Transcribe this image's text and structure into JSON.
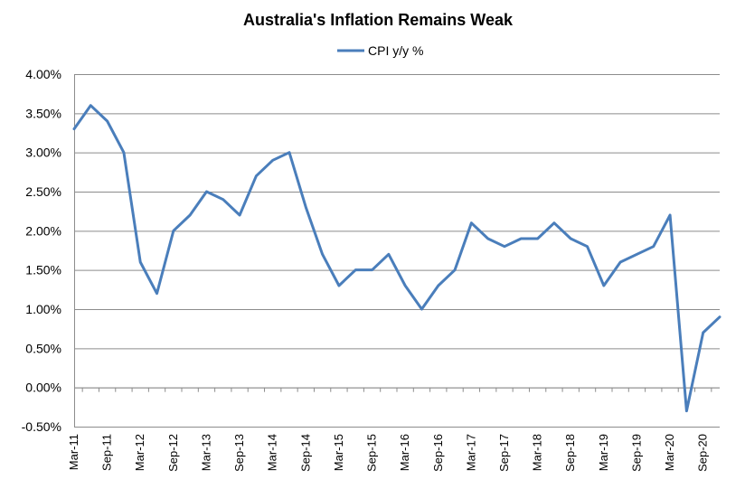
{
  "chart_data": {
    "type": "line",
    "title": "Australia's Inflation Remains Weak",
    "xlabel": "",
    "ylabel": "",
    "ylim": [
      -0.5,
      4.0
    ],
    "yticks": [
      "4.00%",
      "3.50%",
      "3.00%",
      "2.50%",
      "2.00%",
      "1.50%",
      "1.00%",
      "0.50%",
      "0.00%",
      "-0.50%"
    ],
    "ytick_values": [
      4.0,
      3.5,
      3.0,
      2.5,
      2.0,
      1.5,
      1.0,
      0.5,
      0.0,
      -0.5
    ],
    "grid": true,
    "legend": "top-center",
    "x": [
      "Mar-11",
      "Jun-11",
      "Sep-11",
      "Dec-11",
      "Mar-12",
      "Jun-12",
      "Sep-12",
      "Dec-12",
      "Mar-13",
      "Jun-13",
      "Sep-13",
      "Dec-13",
      "Mar-14",
      "Jun-14",
      "Sep-14",
      "Dec-14",
      "Mar-15",
      "Jun-15",
      "Sep-15",
      "Dec-15",
      "Mar-16",
      "Jun-16",
      "Sep-16",
      "Dec-16",
      "Mar-17",
      "Jun-17",
      "Sep-17",
      "Dec-17",
      "Mar-18",
      "Jun-18",
      "Sep-18",
      "Dec-18",
      "Mar-19",
      "Jun-19",
      "Sep-19",
      "Dec-19",
      "Mar-20",
      "Jun-20",
      "Sep-20",
      "Dec-20"
    ],
    "xtick_labels": [
      "Mar-11",
      "Sep-11",
      "Mar-12",
      "Sep-12",
      "Mar-13",
      "Sep-13",
      "Mar-14",
      "Sep-14",
      "Mar-15",
      "Sep-15",
      "Mar-16",
      "Sep-16",
      "Mar-17",
      "Sep-17",
      "Mar-18",
      "Sep-18",
      "Mar-19",
      "Sep-19",
      "Mar-20",
      "Sep-20"
    ],
    "series": [
      {
        "name": "CPI y/y %",
        "color": "#4a7ebb",
        "values": [
          3.3,
          3.6,
          3.4,
          3.0,
          1.6,
          1.2,
          2.0,
          2.2,
          2.5,
          2.4,
          2.2,
          2.7,
          2.9,
          3.0,
          2.3,
          1.7,
          1.3,
          1.5,
          1.5,
          1.7,
          1.3,
          1.0,
          1.3,
          1.5,
          2.1,
          1.9,
          1.8,
          1.9,
          1.9,
          2.1,
          1.9,
          1.8,
          1.3,
          1.6,
          1.7,
          1.8,
          2.2,
          -0.3,
          0.7,
          0.9
        ]
      }
    ]
  }
}
